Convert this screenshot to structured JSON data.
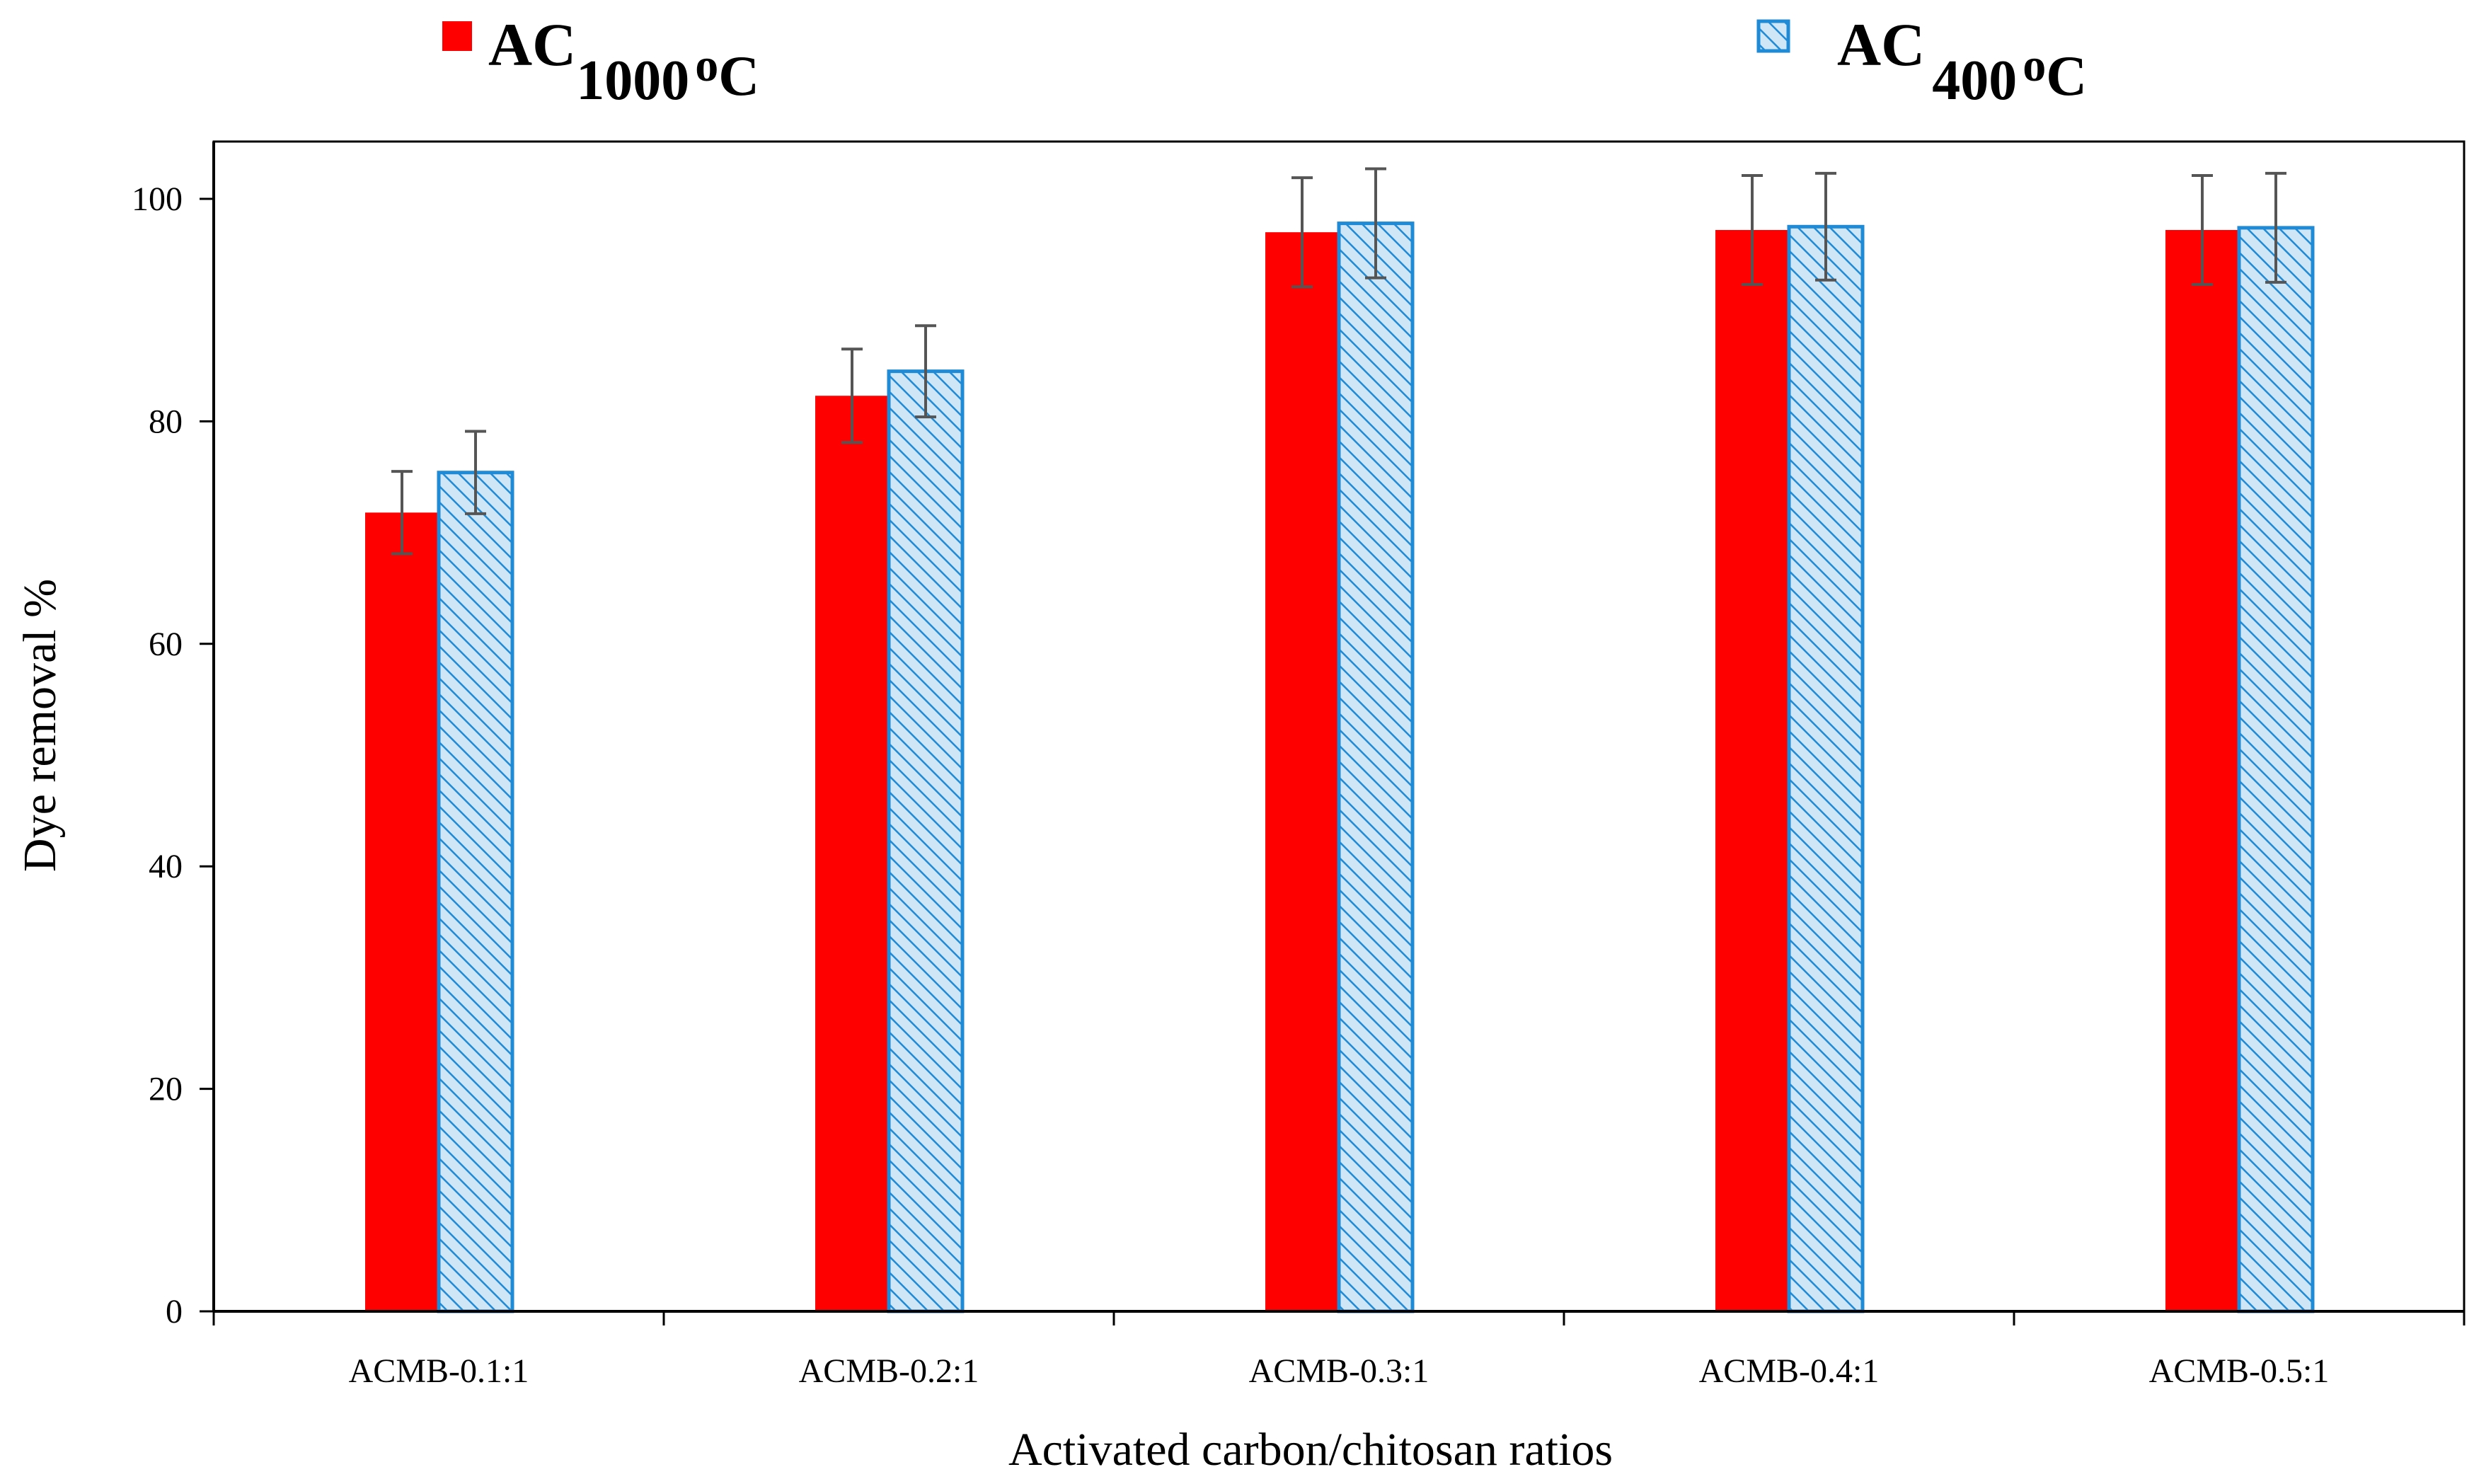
{
  "chart_data": {
    "type": "bar",
    "title": "",
    "xlabel": "Activated carbon/chitosan ratios",
    "ylabel": "Dye removal %",
    "ylim": [
      0,
      100
    ],
    "yticks": [
      0,
      20,
      40,
      60,
      80,
      100
    ],
    "grid": false,
    "legend_position": "top",
    "categories": [
      "ACMB-0.1:1",
      "ACMB-0.2:1",
      "ACMB-0.3:1",
      "ACMB-0.4:1",
      "ACMB-0.5:1"
    ],
    "series": [
      {
        "name": "AC 1000 oC",
        "legend_main": "AC",
        "legend_sub": "1000",
        "legend_sup": "o",
        "legend_unit": "C",
        "color": "#ff0000",
        "pattern": "solid",
        "values": [
          71.8,
          82.3,
          97.0,
          97.2,
          97.2
        ],
        "errors": [
          3.7,
          4.2,
          4.9,
          4.9,
          4.9
        ]
      },
      {
        "name": "AC 400 oC",
        "legend_main": "AC",
        "legend_sub": "400",
        "legend_sup": "o",
        "legend_unit": "C",
        "color": "#1f8ad6",
        "fill": "#cfe6f7",
        "pattern": "diagonal-hatch",
        "values": [
          75.4,
          84.5,
          97.8,
          97.5,
          97.4
        ],
        "errors": [
          3.7,
          4.1,
          4.9,
          4.8,
          4.9
        ]
      }
    ]
  }
}
